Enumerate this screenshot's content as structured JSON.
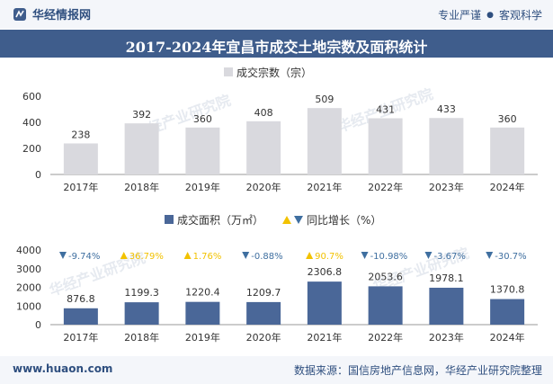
{
  "header": {
    "brand_name": "华经情报网",
    "tagline_left": "专业严谨",
    "tagline_right": "客观科学"
  },
  "title": "2017-2024年宜昌市成交土地宗数及面积统计",
  "footer": {
    "site": "www.huaon.com",
    "source": "数据来源：国信房地产信息网，华经产业研究院整理"
  },
  "watermark": "华经产业研究院",
  "colors": {
    "header_bg": "#3f5d8c",
    "bar_count": "#d9d9de",
    "bar_area": "#4a6798",
    "up": "#f2c200",
    "down": "#3f6fa0"
  },
  "chart_data": [
    {
      "type": "bar",
      "categories": [
        "2017年",
        "2018年",
        "2019年",
        "2020年",
        "2021年",
        "2022年",
        "2023年",
        "2024年"
      ],
      "series": [
        {
          "name": "成交宗数（宗）",
          "values": [
            238,
            392,
            360,
            408,
            509,
            431,
            433,
            360
          ]
        }
      ],
      "ylim": [
        0,
        600
      ],
      "yticks": [
        0,
        200,
        400,
        600
      ],
      "legend_position": "top-center"
    },
    {
      "type": "bar",
      "categories": [
        "2017年",
        "2018年",
        "2019年",
        "2020年",
        "2021年",
        "2022年",
        "2023年",
        "2024年"
      ],
      "series": [
        {
          "name": "成交面积（万㎡）",
          "values": [
            876.8,
            1199.3,
            1220.4,
            1209.7,
            2306.8,
            2053.6,
            1978.1,
            1370.8
          ]
        }
      ],
      "growth": {
        "name": "同比增长（%）",
        "labels": [
          "-9.74%",
          "36.79%",
          "1.76%",
          "-0.88%",
          "90.7%",
          "-10.98%",
          "-3.67%",
          "-30.7%"
        ],
        "directions": [
          "down",
          "up",
          "up",
          "down",
          "up",
          "down",
          "down",
          "down"
        ]
      },
      "ylim": [
        0,
        4000
      ],
      "yticks": [
        0,
        1000,
        2000,
        3000,
        4000
      ],
      "legend_position": "top-center"
    }
  ]
}
